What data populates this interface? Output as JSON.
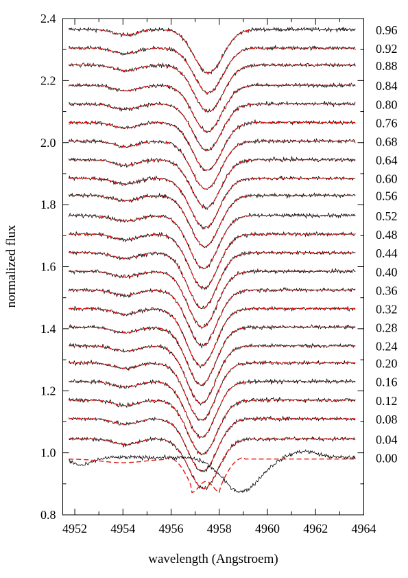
{
  "chart_data": {
    "type": "line",
    "title": "",
    "xlabel": "wavelength (Angstroem)",
    "ylabel": "normalized flux",
    "xlim": [
      4951.5,
      4964
    ],
    "ylim": [
      0.8,
      2.4
    ],
    "xticks": [
      4952,
      4954,
      4956,
      4958,
      4960,
      4962,
      4964
    ],
    "yticks": [
      0.8,
      1.0,
      1.2,
      1.4,
      1.6,
      1.8,
      2.0,
      2.2,
      2.4
    ],
    "grid": false,
    "legend": "none",
    "colors": {
      "observed": "#000000",
      "model": "#e0140f"
    },
    "phases": [
      {
        "label": "0.96",
        "offset": 2.365,
        "depth": 0.14,
        "center": 4957.55,
        "width": 0.85
      },
      {
        "label": "0.92",
        "offset": 2.305,
        "depth": 0.145,
        "center": 4957.55,
        "width": 0.85
      },
      {
        "label": "0.88",
        "offset": 2.25,
        "depth": 0.15,
        "center": 4957.55,
        "width": 0.85
      },
      {
        "label": "0.84",
        "offset": 2.185,
        "depth": 0.15,
        "center": 4957.5,
        "width": 0.85
      },
      {
        "label": "0.80",
        "offset": 2.125,
        "depth": 0.15,
        "center": 4957.5,
        "width": 0.85
      },
      {
        "label": "0.76",
        "offset": 2.065,
        "depth": 0.155,
        "center": 4957.5,
        "width": 0.85
      },
      {
        "label": "0.68",
        "offset": 2.005,
        "depth": 0.155,
        "center": 4957.45,
        "width": 0.85
      },
      {
        "label": "0.64",
        "offset": 1.945,
        "depth": 0.155,
        "center": 4957.45,
        "width": 0.85
      },
      {
        "label": "0.60",
        "offset": 1.885,
        "depth": 0.16,
        "center": 4957.4,
        "width": 0.85
      },
      {
        "label": "0.56",
        "offset": 1.83,
        "depth": 0.165,
        "center": 4957.4,
        "width": 0.85
      },
      {
        "label": "0.52",
        "offset": 1.765,
        "depth": 0.17,
        "center": 4957.35,
        "width": 0.85
      },
      {
        "label": "0.48",
        "offset": 1.705,
        "depth": 0.175,
        "center": 4957.35,
        "width": 0.85
      },
      {
        "label": "0.44",
        "offset": 1.645,
        "depth": 0.18,
        "center": 4957.3,
        "width": 0.85
      },
      {
        "label": "0.40",
        "offset": 1.585,
        "depth": 0.18,
        "center": 4957.3,
        "width": 0.85
      },
      {
        "label": "0.36",
        "offset": 1.525,
        "depth": 0.18,
        "center": 4957.3,
        "width": 0.85
      },
      {
        "label": "0.32",
        "offset": 1.465,
        "depth": 0.185,
        "center": 4957.25,
        "width": 0.85
      },
      {
        "label": "0.28",
        "offset": 1.405,
        "depth": 0.185,
        "center": 4957.25,
        "width": 0.85
      },
      {
        "label": "0.24",
        "offset": 1.345,
        "depth": 0.185,
        "center": 4957.25,
        "width": 0.85
      },
      {
        "label": "0.20",
        "offset": 1.29,
        "depth": 0.185,
        "center": 4957.25,
        "width": 0.85
      },
      {
        "label": "0.16",
        "offset": 1.23,
        "depth": 0.18,
        "center": 4957.25,
        "width": 0.85
      },
      {
        "label": "0.12",
        "offset": 1.17,
        "depth": 0.175,
        "center": 4957.3,
        "width": 0.85
      },
      {
        "label": "0.08",
        "offset": 1.11,
        "depth": 0.17,
        "center": 4957.3,
        "width": 0.85
      },
      {
        "label": "0.04",
        "offset": 1.045,
        "depth": 0.16,
        "center": 4957.35,
        "width": 0.85
      },
      {
        "label": "0.00",
        "offset": 0.985,
        "depth": 0.1,
        "center": 4957.4,
        "width": 1.1
      }
    ]
  }
}
